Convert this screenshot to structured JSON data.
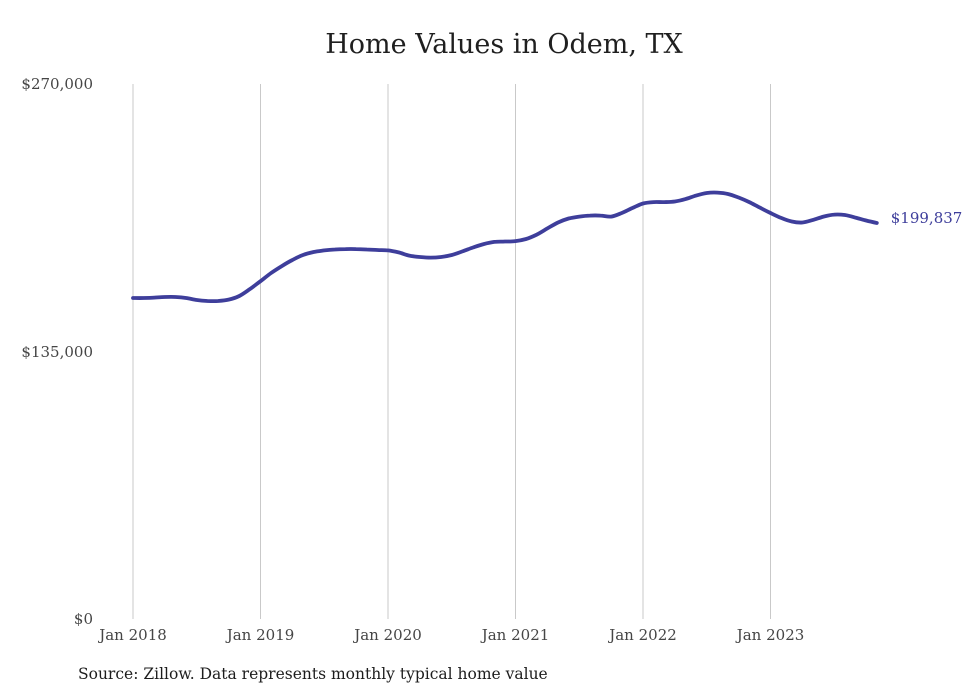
{
  "page": {
    "background": "#ffffff"
  },
  "chart_data": {
    "type": "line",
    "title": "Home Values in Odem, TX",
    "source_note": "Source: Zillow. Data represents monthly typical home value",
    "end_label": "$199,837",
    "line_color": "#3e3e9b",
    "grid_color": "#c9c9c9",
    "tick_color": "#454545",
    "grid": "vertical-only",
    "legend_position": "none",
    "ylim": [
      0,
      270000
    ],
    "yticks": [
      {
        "label": "$0",
        "value": 0
      },
      {
        "label": "$135,000",
        "value": 135000
      },
      {
        "label": "$270,000",
        "value": 270000
      }
    ],
    "xticks": [
      {
        "label": "Jan 2018",
        "month_index": 0
      },
      {
        "label": "Jan 2019",
        "month_index": 12
      },
      {
        "label": "Jan 2020",
        "month_index": 24
      },
      {
        "label": "Jan 2021",
        "month_index": 36
      },
      {
        "label": "Jan 2022",
        "month_index": 48
      },
      {
        "label": "Jan 2023",
        "month_index": 60
      }
    ],
    "series": [
      {
        "name": "Monthly typical home value",
        "x": [
          "2018-01",
          "2018-02",
          "2018-03",
          "2018-04",
          "2018-05",
          "2018-06",
          "2018-07",
          "2018-08",
          "2018-09",
          "2018-10",
          "2018-11",
          "2018-12",
          "2019-01",
          "2019-02",
          "2019-03",
          "2019-04",
          "2019-05",
          "2019-06",
          "2019-07",
          "2019-08",
          "2019-09",
          "2019-10",
          "2019-11",
          "2019-12",
          "2020-01",
          "2020-02",
          "2020-03",
          "2020-04",
          "2020-05",
          "2020-06",
          "2020-07",
          "2020-08",
          "2020-09",
          "2020-10",
          "2020-11",
          "2020-12",
          "2021-01",
          "2021-02",
          "2021-03",
          "2021-04",
          "2021-05",
          "2021-06",
          "2021-07",
          "2021-08",
          "2021-09",
          "2021-10",
          "2021-11",
          "2021-12",
          "2022-01",
          "2022-02",
          "2022-03",
          "2022-04",
          "2022-05",
          "2022-06",
          "2022-07",
          "2022-08",
          "2022-09",
          "2022-10",
          "2022-11",
          "2022-12",
          "2023-01",
          "2023-02",
          "2023-03",
          "2023-04",
          "2023-05",
          "2023-06",
          "2023-07",
          "2023-08",
          "2023-09",
          "2023-10",
          "2023-11"
        ],
        "values": [
          162000,
          162000,
          162200,
          162500,
          162500,
          162000,
          161000,
          160500,
          160500,
          161200,
          163000,
          166500,
          170500,
          174600,
          178100,
          181200,
          183700,
          185200,
          186000,
          186500,
          186700,
          186700,
          186500,
          186200,
          186000,
          185000,
          183400,
          182700,
          182400,
          182700,
          183700,
          185500,
          187500,
          189200,
          190300,
          190500,
          190700,
          191800,
          194000,
          197100,
          200100,
          202100,
          203100,
          203600,
          203600,
          203100,
          204900,
          207400,
          209700,
          210400,
          210400,
          210700,
          211900,
          213700,
          215000,
          215200,
          214500,
          212700,
          210400,
          207600,
          204900,
          202400,
          200600,
          200100,
          201400,
          203100,
          204100,
          203900,
          202600,
          201100,
          199837
        ]
      }
    ]
  }
}
